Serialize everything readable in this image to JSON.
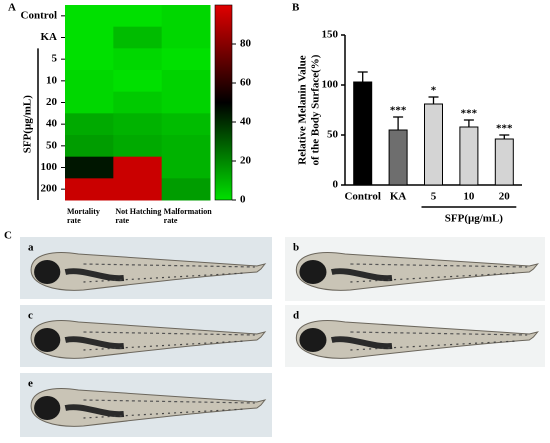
{
  "chart_data": [
    {
      "type": "heatmap",
      "label": "A",
      "rows": [
        "Control",
        "KA",
        "5",
        "10",
        "20",
        "40",
        "50",
        "100",
        "200"
      ],
      "columns": [
        "Mortality rate",
        "Not Hatching rate",
        "Malformation rate"
      ],
      "group_label": "SFP(μg/mL)",
      "values": [
        [
          0,
          0,
          2
        ],
        [
          0,
          8,
          2
        ],
        [
          0,
          2,
          0
        ],
        [
          2,
          0,
          3
        ],
        [
          2,
          5,
          3
        ],
        [
          12,
          10,
          8
        ],
        [
          15,
          12,
          10
        ],
        [
          45,
          95,
          10
        ],
        [
          95,
          95,
          15
        ]
      ],
      "clim": [
        0,
        100
      ],
      "cticks": [
        0,
        20,
        40,
        60,
        80
      ],
      "colors": [
        "#00e000",
        "#000000",
        "#e00000"
      ]
    },
    {
      "type": "bar",
      "label": "B",
      "ylabel": [
        "Relative Melanin Value",
        "of the Body Surface(%)"
      ],
      "categories": [
        "Control",
        "KA",
        "5",
        "10",
        "20"
      ],
      "values": [
        103,
        55,
        81,
        58,
        46
      ],
      "errors": [
        10,
        13,
        7,
        7,
        4
      ],
      "annotations": [
        null,
        "***",
        "*",
        "***",
        "***"
      ],
      "colors": [
        "#000000",
        "#6e6e6e",
        "#d4d4d4",
        "#d4d4d4",
        "#d4d4d4"
      ],
      "group_label": "SFP(μg/mL)",
      "ylim": [
        0,
        150
      ],
      "yticks": [
        0,
        50,
        100,
        150
      ]
    }
  ],
  "panel_c": {
    "label": "C",
    "photos": [
      "a",
      "b",
      "c",
      "d",
      "e"
    ]
  }
}
